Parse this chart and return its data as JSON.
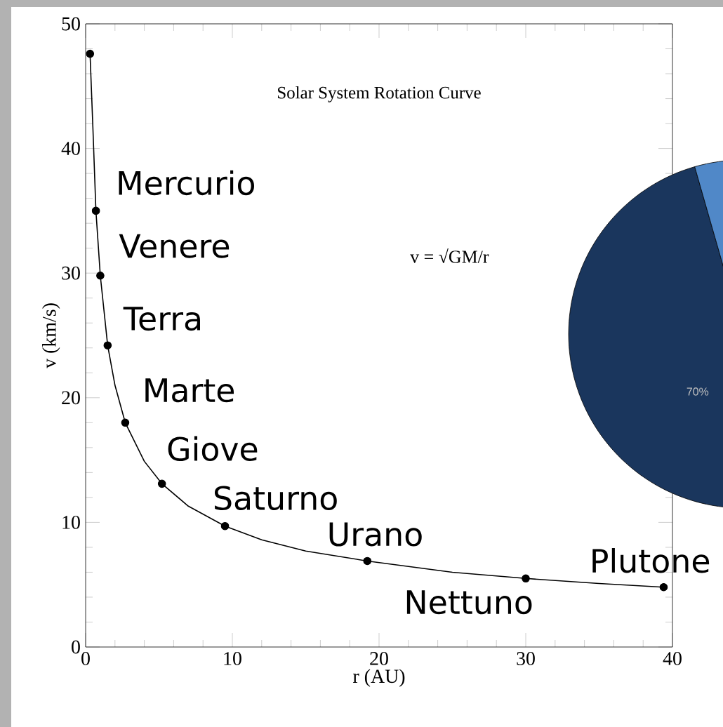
{
  "chart_data": [
    {
      "type": "scatter",
      "title": "Solar System Rotation Curve",
      "xlabel": "r (AU)",
      "ylabel": "v (km/s)",
      "xlim": [
        0,
        40
      ],
      "ylim": [
        0,
        50
      ],
      "xticks": [
        0,
        10,
        20,
        30,
        40
      ],
      "yticks": [
        0,
        10,
        20,
        30,
        40,
        50
      ],
      "annotations": [
        "v = √GM/r",
        {
          "text": "Mercurio",
          "x": 0.7,
          "y": 35
        },
        {
          "text": "Venere",
          "x": 1.0,
          "y": 29.8
        },
        {
          "text": "Terra",
          "x": 1.5,
          "y": 24.2
        },
        {
          "text": "Marte",
          "x": 2.7,
          "y": 18
        },
        {
          "text": "Giove",
          "x": 5.2,
          "y": 13.1
        },
        {
          "text": "Saturno",
          "x": 9.5,
          "y": 9.7
        },
        {
          "text": "Urano",
          "x": 19.2,
          "y": 6.9
        },
        {
          "text": "Nettuno",
          "x": 30.0,
          "y": 5.5
        },
        {
          "text": "Plutone",
          "x": 39.4,
          "y": 4.8
        }
      ],
      "series": [
        {
          "type": "scatter",
          "color": "#000000",
          "marker": "circle",
          "x": [
            0.3,
            0.7,
            1.0,
            1.5,
            2.7,
            5.2,
            9.5,
            19.2,
            30.0,
            39.4
          ],
          "values": [
            47.6,
            35,
            29.8,
            24.2,
            18,
            13.1,
            9.7,
            6.9,
            5.5,
            4.8
          ]
        },
        {
          "type": "line",
          "color": "#000000",
          "marker": "none",
          "x": [
            0.3,
            0.5,
            0.7,
            1.0,
            1.5,
            2,
            2.7,
            4,
            5.2,
            7,
            9.5,
            12,
            15,
            19.2,
            25,
            30,
            35,
            39.4
          ],
          "values": [
            47.6,
            41.5,
            35,
            29.8,
            24.2,
            21,
            18,
            14.9,
            13.1,
            11.3,
            9.7,
            8.6,
            7.7,
            6.9,
            6.0,
            5.5,
            5.1,
            4.8
          ]
        }
      ]
    },
    {
      "type": "pie",
      "categories": [
        null,
        null
      ],
      "values": [
        70,
        30
      ],
      "colors": [
        "#1a365d",
        "#5088c8"
      ],
      "value_labels": [
        "70%",
        null
      ]
    }
  ]
}
